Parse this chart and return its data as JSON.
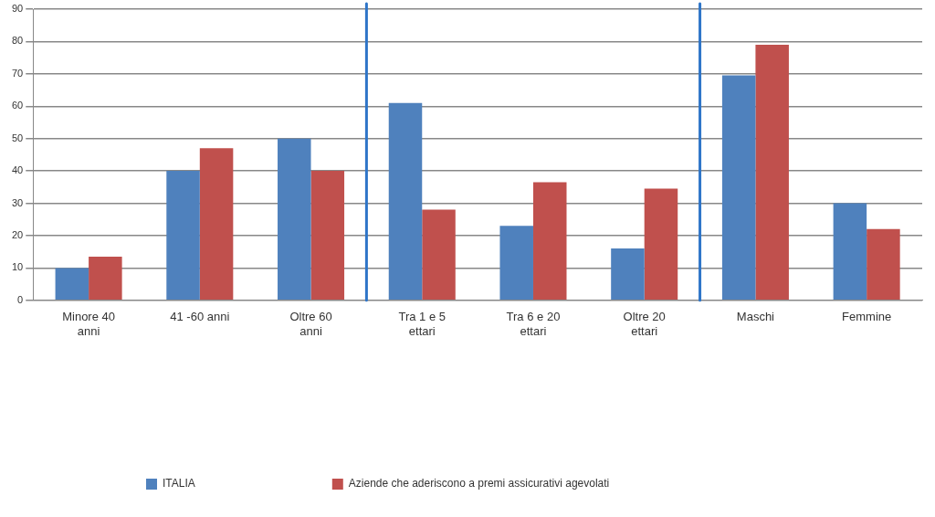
{
  "chart_data": {
    "type": "bar",
    "categories": [
      "Minore 40 anni",
      "41 -60 anni",
      "Oltre 60 anni",
      "Tra 1 e 5 ettari",
      "Tra 6 e 20 ettari",
      "Oltre 20 ettari",
      "Maschi",
      "Femmine"
    ],
    "series": [
      {
        "name": "ITALIA",
        "color": "#4f81bd",
        "values": [
          10,
          40,
          50,
          61,
          23,
          16,
          69.5,
          30
        ]
      },
      {
        "name": "Aziende che aderiscono a premi assicurativi agevolati",
        "color": "#c0504d",
        "values": [
          13.5,
          47,
          40,
          28,
          36.5,
          34.5,
          79,
          22
        ]
      }
    ],
    "ylim": [
      0,
      90
    ],
    "yticks": [
      0,
      10,
      20,
      30,
      40,
      50,
      60,
      70,
      80,
      90
    ],
    "grid": "y",
    "legend": "bottom left"
  }
}
